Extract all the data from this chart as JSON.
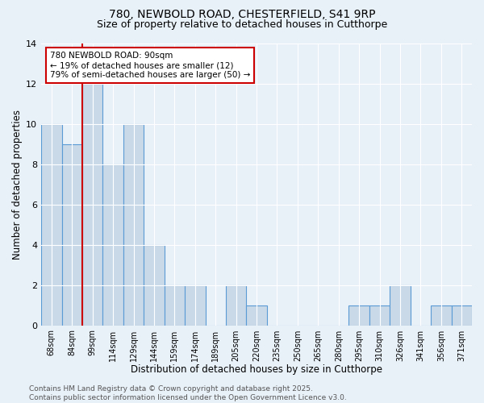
{
  "title": "780, NEWBOLD ROAD, CHESTERFIELD, S41 9RP",
  "subtitle": "Size of property relative to detached houses in Cutthorpe",
  "xlabel": "Distribution of detached houses by size in Cutthorpe",
  "ylabel": "Number of detached properties",
  "categories": [
    "68sqm",
    "84sqm",
    "99sqm",
    "114sqm",
    "129sqm",
    "144sqm",
    "159sqm",
    "174sqm",
    "189sqm",
    "205sqm",
    "220sqm",
    "235sqm",
    "250sqm",
    "265sqm",
    "280sqm",
    "295sqm",
    "310sqm",
    "326sqm",
    "341sqm",
    "356sqm",
    "371sqm"
  ],
  "values": [
    10,
    9,
    12,
    8,
    10,
    4,
    2,
    2,
    0,
    2,
    1,
    0,
    0,
    0,
    0,
    1,
    1,
    2,
    0,
    1,
    1
  ],
  "bar_color": "#c9d9e8",
  "bar_edge_color": "#5b9bd5",
  "annotation_text": "780 NEWBOLD ROAD: 90sqm\n← 19% of detached houses are smaller (12)\n79% of semi-detached houses are larger (50) →",
  "annotation_box_color": "#ffffff",
  "annotation_box_edge_color": "#cc0000",
  "vline_color": "#cc0000",
  "vline_x_index": 1.5,
  "ylim": [
    0,
    14
  ],
  "yticks": [
    0,
    2,
    4,
    6,
    8,
    10,
    12,
    14
  ],
  "footnote": "Contains HM Land Registry data © Crown copyright and database right 2025.\nContains public sector information licensed under the Open Government Licence v3.0.",
  "background_color": "#e8f0f8",
  "plot_background_color": "#e8f0f8",
  "grid_color": "#ffffff",
  "title_fontsize": 10,
  "subtitle_fontsize": 9,
  "label_fontsize": 8.5,
  "tick_fontsize": 7,
  "footnote_fontsize": 6.5
}
